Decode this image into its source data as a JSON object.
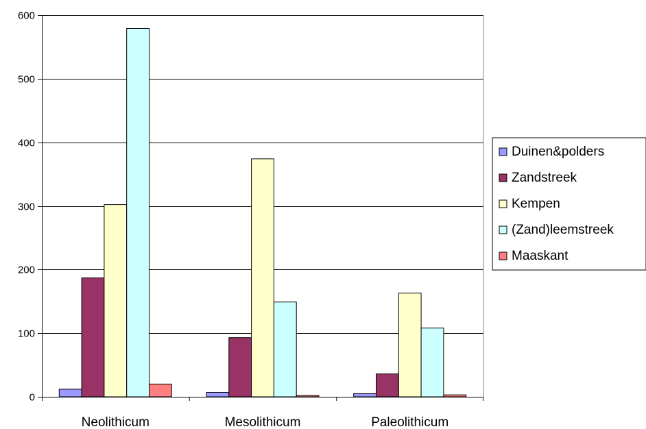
{
  "chart_data": {
    "type": "bar",
    "categories": [
      "Neolithicum",
      "Mesolithicum",
      "Paleolithicum"
    ],
    "series": [
      {
        "name": "Duinen&polders",
        "color": "#9999ff",
        "values": [
          12,
          7,
          5
        ]
      },
      {
        "name": "Zandstreek",
        "color": "#993366",
        "values": [
          187,
          93,
          36
        ]
      },
      {
        "name": "Kempen",
        "color": "#ffffcc",
        "values": [
          302,
          374,
          163
        ]
      },
      {
        "name": "(Zand)leemstreek",
        "color": "#ccffff",
        "values": [
          579,
          149,
          108
        ]
      },
      {
        "name": "Maaskant",
        "color": "#ff8080",
        "values": [
          20,
          2,
          3
        ]
      }
    ],
    "ylim": [
      0,
      600
    ],
    "yticks": [
      0,
      100,
      200,
      300,
      400,
      500,
      600
    ],
    "grid": true,
    "legend": "right"
  }
}
